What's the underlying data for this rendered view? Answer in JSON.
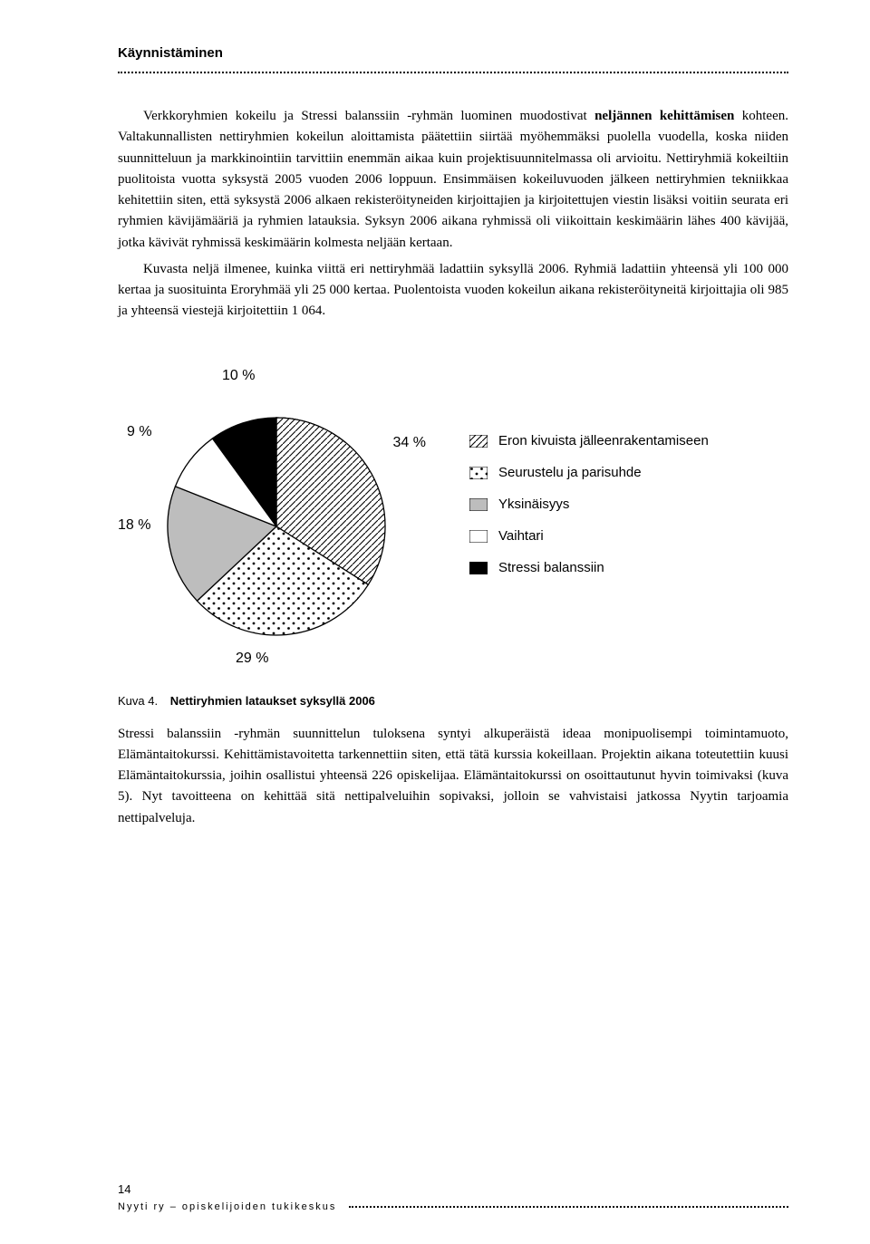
{
  "heading": "Käynnistäminen",
  "para1_lead": "Verkkoryhmien kokeilu ja Stressi balanssiin -ryhmän luominen muodostivat ",
  "para1_bold": "neljännen kehittämisen",
  "para1_tail": " kohteen. Valtakunnallisten nettiryhmien kokeilun aloittamista päätettiin siirtää myöhemmäksi puolella vuodella, koska niiden suunnitteluun ja markkinointiin tarvittiin enemmän aikaa kuin projektisuunnitelmassa oli arvioitu. Nettiryhmiä kokeiltiin puolitoista vuotta syksystä 2005 vuoden 2006 loppuun. Ensimmäisen kokeiluvuoden jälkeen nettiryhmien tekniikkaa kehitettiin siten, että syksystä 2006 alkaen rekisteröityneiden kirjoittajien ja kirjoitettujen viestin lisäksi voitiin seurata eri ryhmien kävijämääriä ja ryhmien latauksia. Syksyn 2006 aikana ryhmissä oli viikoittain keskimäärin lähes 400 kävijää, jotka kävivät ryhmissä keskimäärin kolmesta neljään kertaan.",
  "para2": "Kuvasta neljä ilmenee, kuinka viittä eri nettiryhmää ladattiin syksyllä 2006. Ryhmiä ladattiin yhteensä yli 100 000 kertaa ja suosituinta Eroryhmää yli 25 000 kertaa. Puolentoista vuoden kokeilun aikana rekisteröityneitä kirjoittajia oli 985 ja yhteensä viestejä kirjoitettiin 1 064.",
  "chart": {
    "type": "pie",
    "slices": [
      {
        "label": "Eron kivuista jälleenrakentamiseen",
        "pct": 34,
        "pattern": "diag"
      },
      {
        "label": "Seurustelu ja parisuhde",
        "pct": 29,
        "pattern": "dots"
      },
      {
        "label": "Yksinäisyys",
        "pct": 18,
        "pattern": "gray"
      },
      {
        "label": "Vaihtari",
        "pct": 9,
        "pattern": "white"
      },
      {
        "label": "Stressi balanssiin",
        "pct": 10,
        "pattern": "black"
      }
    ],
    "colors": {
      "stroke": "#000000",
      "gray_fill": "#bdbdbd",
      "black_fill": "#000000",
      "white_fill": "#ffffff",
      "background": "#ffffff"
    },
    "pct_labels": {
      "p34": "34 %",
      "p29": "29 %",
      "p18": "18 %",
      "p9": "9 %",
      "p10": "10 %"
    },
    "label_fontsize": 16
  },
  "caption_prefix": "Kuva 4.",
  "caption_title": "Nettiryhmien lataukset syksyllä 2006",
  "para3": "Stressi balanssiin -ryhmän suunnittelun tuloksena syntyi alkuperäistä ideaa monipuolisempi toimintamuoto, Elämäntaitokurssi. Kehittämistavoitetta tarkennettiin siten, että tätä kurssia kokeillaan. Projektin aikana toteutettiin kuusi Elämäntaitokurssia, joihin osallistui yhteensä 226 opiskelijaa. Elämäntaitokurssi on osoittautunut hyvin toimivaksi (kuva 5). Nyt tavoitteena on kehittää sitä nettipalveluihin sopivaksi, jolloin se vahvistaisi jatkossa Nyytin tarjoamia nettipalveluja.",
  "page_number": "14",
  "footer_text": "Nyyti ry – opiskelijoiden tukikeskus"
}
